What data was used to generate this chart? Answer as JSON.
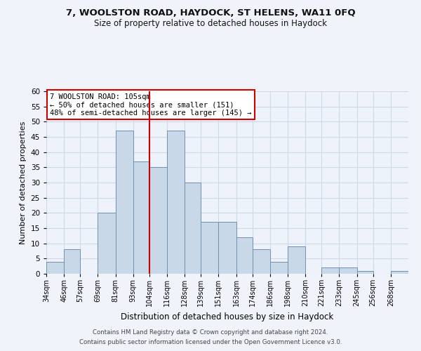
{
  "title_line1": "7, WOOLSTON ROAD, HAYDOCK, ST HELENS, WA11 0FQ",
  "title_line2": "Size of property relative to detached houses in Haydock",
  "xlabel": "Distribution of detached houses by size in Haydock",
  "ylabel": "Number of detached properties",
  "bin_labels": [
    "34sqm",
    "46sqm",
    "57sqm",
    "69sqm",
    "81sqm",
    "93sqm",
    "104sqm",
    "116sqm",
    "128sqm",
    "139sqm",
    "151sqm",
    "163sqm",
    "174sqm",
    "186sqm",
    "198sqm",
    "210sqm",
    "221sqm",
    "233sqm",
    "245sqm",
    "256sqm",
    "268sqm"
  ],
  "bin_edges": [
    34,
    46,
    57,
    69,
    81,
    93,
    104,
    116,
    128,
    139,
    151,
    163,
    174,
    186,
    198,
    210,
    221,
    233,
    245,
    256,
    268
  ],
  "bar_heights": [
    4,
    8,
    0,
    20,
    47,
    37,
    35,
    47,
    30,
    17,
    17,
    12,
    8,
    4,
    9,
    0,
    2,
    2,
    1,
    0,
    1
  ],
  "bar_color": "#c8d8e8",
  "bar_edge_color": "#7090b0",
  "property_line_x": 104,
  "annotation_text_line1": "7 WOOLSTON ROAD: 105sqm",
  "annotation_text_line2": "← 50% of detached houses are smaller (151)",
  "annotation_text_line3": "48% of semi-detached houses are larger (145) →",
  "annotation_box_edge": "#cc0000",
  "vline_color": "#cc0000",
  "ylim": [
    0,
    60
  ],
  "yticks": [
    0,
    5,
    10,
    15,
    20,
    25,
    30,
    35,
    40,
    45,
    50,
    55,
    60
  ],
  "grid_color": "#d0d8e8",
  "footnote_line1": "Contains HM Land Registry data © Crown copyright and database right 2024.",
  "footnote_line2": "Contains public sector information licensed under the Open Government Licence v3.0.",
  "bg_color": "#f0f4fa",
  "plot_bg_color": "#eef2fa"
}
